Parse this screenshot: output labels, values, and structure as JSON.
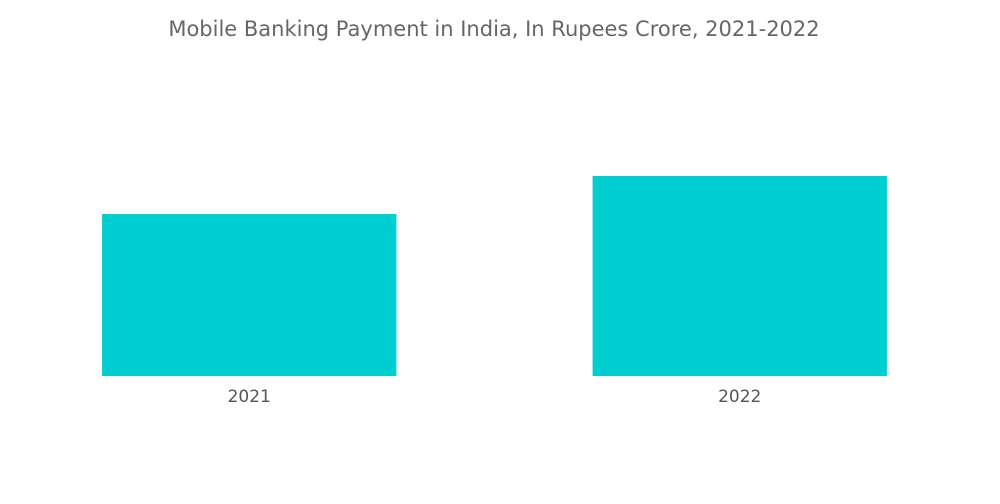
{
  "chart_data": {
    "type": "bar",
    "title": "Mobile Banking Payment in India, In Rupees Crore, 2021-2022",
    "categories": [
      "2021",
      "2022"
    ],
    "values": [
      162,
      200
    ],
    "color": "#00ced1",
    "ylim": [
      0,
      250
    ]
  }
}
